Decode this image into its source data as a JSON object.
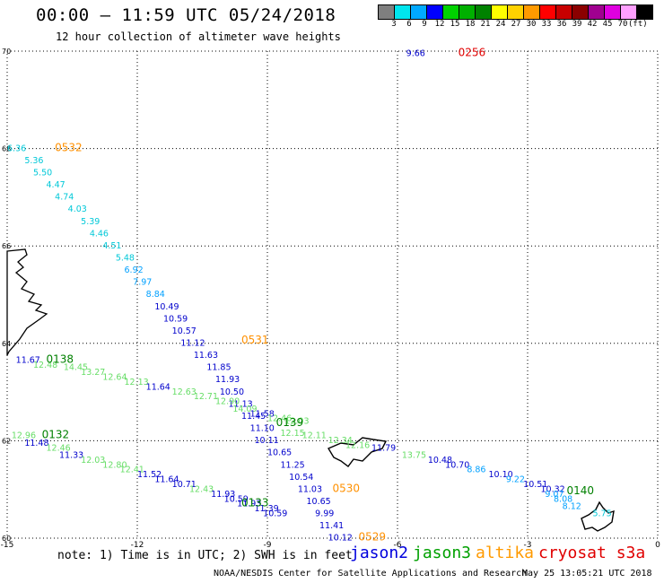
{
  "header": {
    "title": "00:00 – 11:59 UTC 05/24/2018",
    "subtitle": "12 hour collection of altimeter wave heights"
  },
  "legend": {
    "colors": [
      "#7f7f7f",
      "#00e5ee",
      "#00a9ff",
      "#0000ff",
      "#00d200",
      "#00b000",
      "#008200",
      "#ffff00",
      "#ffd200",
      "#ff9a00",
      "#ff0000",
      "#c80000",
      "#8b0000",
      "#a00090",
      "#e000e0",
      "#ffa0ff",
      "#000000"
    ],
    "labels": [
      "3",
      "6",
      "9",
      "12",
      "15",
      "18",
      "21",
      "24",
      "27",
      "30",
      "33",
      "36",
      "39",
      "42",
      "45",
      "70",
      "(ft)"
    ]
  },
  "map": {
    "lat_labels": [
      "70",
      "68",
      "66",
      "64",
      "62",
      "60"
    ],
    "lon_labels": [
      "-15",
      "-12",
      "-9",
      "-6",
      "-3",
      "0"
    ]
  },
  "passes": [
    {
      "label": "0256",
      "color": "#e00000",
      "label_pos": [
        -4.6,
        69.9
      ],
      "obs": [
        {
          "lat": 69.9,
          "lon": -5.8,
          "v": "9.66",
          "c": "#0000cc"
        }
      ]
    },
    {
      "label": "0532",
      "color": "#ff9000",
      "label_pos": [
        -13.9,
        67.95
      ],
      "obs": [
        {
          "lat": 67.95,
          "lon": -15.0,
          "v": "6.36",
          "c": "#00c8d8"
        },
        {
          "lat": 67.7,
          "lon": -14.6,
          "v": "5.36",
          "c": "#00c8d8"
        },
        {
          "lat": 67.45,
          "lon": -14.4,
          "v": "5.50",
          "c": "#00c8d8"
        },
        {
          "lat": 67.2,
          "lon": -14.1,
          "v": "4.47",
          "c": "#00c8d8"
        },
        {
          "lat": 66.95,
          "lon": -13.9,
          "v": "4.74",
          "c": "#00c8d8"
        },
        {
          "lat": 66.7,
          "lon": -13.6,
          "v": "4.03",
          "c": "#00c8d8"
        },
        {
          "lat": 66.45,
          "lon": -13.3,
          "v": "5.39",
          "c": "#00c8d8"
        },
        {
          "lat": 66.2,
          "lon": -13.1,
          "v": "4.46",
          "c": "#00c8d8"
        },
        {
          "lat": 65.95,
          "lon": -12.8,
          "v": "4.51",
          "c": "#00c8d8"
        },
        {
          "lat": 65.7,
          "lon": -12.5,
          "v": "5.48",
          "c": "#00c8d8"
        },
        {
          "lat": 65.45,
          "lon": -12.3,
          "v": "6.92",
          "c": "#00a0ff"
        },
        {
          "lat": 65.2,
          "lon": -12.1,
          "v": "7.97",
          "c": "#00a0ff"
        },
        {
          "lat": 64.95,
          "lon": -11.8,
          "v": "8.84",
          "c": "#00a0ff"
        },
        {
          "lat": 64.7,
          "lon": -11.6,
          "v": "10.49",
          "c": "#0000cc"
        },
        {
          "lat": 64.45,
          "lon": -11.4,
          "v": "10.59",
          "c": "#0000cc"
        },
        {
          "lat": 64.2,
          "lon": -11.2,
          "v": "10.57",
          "c": "#0000cc"
        }
      ]
    },
    {
      "label": "0531",
      "color": "#ff9000",
      "label_pos": [
        -9.6,
        64.0
      ],
      "obs": [
        {
          "lat": 63.95,
          "lon": -11.0,
          "v": "11.12",
          "c": "#0000cc"
        },
        {
          "lat": 63.7,
          "lon": -10.7,
          "v": "11.63",
          "c": "#0000cc"
        },
        {
          "lat": 63.45,
          "lon": -10.4,
          "v": "11.85",
          "c": "#0000cc"
        },
        {
          "lat": 63.2,
          "lon": -10.2,
          "v": "11.93",
          "c": "#0000cc"
        },
        {
          "lat": 62.95,
          "lon": -10.1,
          "v": "10.50",
          "c": "#0000cc"
        },
        {
          "lat": 62.7,
          "lon": -9.9,
          "v": "11.13",
          "c": "#0000cc"
        },
        {
          "lat": 62.45,
          "lon": -9.6,
          "v": "11.45",
          "c": "#0000cc"
        },
        {
          "lat": 62.2,
          "lon": -9.4,
          "v": "11.10",
          "c": "#0000cc"
        },
        {
          "lat": 61.95,
          "lon": -9.3,
          "v": "10.11",
          "c": "#0000cc"
        },
        {
          "lat": 61.7,
          "lon": -9.0,
          "v": "10.65",
          "c": "#0000cc"
        },
        {
          "lat": 61.45,
          "lon": -8.7,
          "v": "11.25",
          "c": "#0000cc"
        },
        {
          "lat": 61.2,
          "lon": -8.5,
          "v": "10.54",
          "c": "#0000cc"
        },
        {
          "lat": 60.95,
          "lon": -8.3,
          "v": "11.03",
          "c": "#0000cc"
        },
        {
          "lat": 60.7,
          "lon": -8.1,
          "v": "10.65",
          "c": "#0000cc"
        }
      ]
    },
    {
      "label": "0530",
      "color": "#ff9000",
      "label_pos": [
        -7.5,
        60.95
      ],
      "obs": [
        {
          "lat": 60.45,
          "lon": -7.9,
          "v": "9.99",
          "c": "#0000cc"
        },
        {
          "lat": 60.2,
          "lon": -7.8,
          "v": "11.41",
          "c": "#0000cc"
        },
        {
          "lat": 59.95,
          "lon": -7.6,
          "v": "10.12",
          "c": "#0000cc"
        }
      ]
    },
    {
      "label": "0529",
      "color": "#ff9000",
      "label_pos": [
        -6.9,
        59.95
      ],
      "obs": []
    },
    {
      "label": "0138",
      "color": "#008000",
      "label_pos": [
        -14.1,
        63.6
      ],
      "obs": [
        {
          "lat": 63.6,
          "lon": -14.8,
          "v": "11.67",
          "c": "#0000cc"
        },
        {
          "lat": 63.5,
          "lon": -14.4,
          "v": "12.48",
          "c": "#66dd66"
        },
        {
          "lat": 63.45,
          "lon": -13.7,
          "v": "14.45",
          "c": "#66dd66"
        },
        {
          "lat": 63.35,
          "lon": -13.3,
          "v": "13.27",
          "c": "#66dd66"
        },
        {
          "lat": 63.25,
          "lon": -12.8,
          "v": "12.64",
          "c": "#66dd66"
        },
        {
          "lat": 63.15,
          "lon": -12.3,
          "v": "12.13",
          "c": "#66dd66"
        },
        {
          "lat": 63.05,
          "lon": -11.8,
          "v": "11.64",
          "c": "#0000cc"
        },
        {
          "lat": 62.95,
          "lon": -11.2,
          "v": "12.63",
          "c": "#66dd66"
        },
        {
          "lat": 62.85,
          "lon": -10.7,
          "v": "12.71",
          "c": "#66dd66"
        },
        {
          "lat": 62.75,
          "lon": -10.2,
          "v": "12.90",
          "c": "#66dd66"
        },
        {
          "lat": 62.6,
          "lon": -9.8,
          "v": "14.09",
          "c": "#66dd66"
        },
        {
          "lat": 62.5,
          "lon": -9.4,
          "v": "11.58",
          "c": "#0000cc"
        },
        {
          "lat": 62.4,
          "lon": -9.0,
          "v": "12.46",
          "c": "#66dd66"
        },
        {
          "lat": 62.35,
          "lon": -8.6,
          "v": "12.03",
          "c": "#66dd66"
        }
      ]
    },
    {
      "label": "0139",
      "color": "#008000",
      "label_pos": [
        -8.8,
        62.3
      ],
      "obs": [
        {
          "lat": 62.1,
          "lon": -8.7,
          "v": "12.15",
          "c": "#66dd66"
        },
        {
          "lat": 62.05,
          "lon": -8.2,
          "v": "12.11",
          "c": "#66dd66"
        },
        {
          "lat": 61.95,
          "lon": -7.6,
          "v": "12.34",
          "c": "#66dd66"
        },
        {
          "lat": 61.85,
          "lon": -7.2,
          "v": "12.16",
          "c": "#66dd66"
        },
        {
          "lat": 61.8,
          "lon": -6.6,
          "v": "11.79",
          "c": "#0000cc"
        },
        {
          "lat": 61.65,
          "lon": -5.9,
          "v": "13.75",
          "c": "#66dd66"
        },
        {
          "lat": 61.55,
          "lon": -5.3,
          "v": "10.48",
          "c": "#0000cc"
        },
        {
          "lat": 61.45,
          "lon": -4.9,
          "v": "10.70",
          "c": "#0000cc"
        },
        {
          "lat": 61.35,
          "lon": -4.4,
          "v": "8.86",
          "c": "#00a0ff"
        },
        {
          "lat": 61.25,
          "lon": -3.9,
          "v": "10.10",
          "c": "#0000cc"
        },
        {
          "lat": 61.15,
          "lon": -3.5,
          "v": "9.22",
          "c": "#00a0ff"
        },
        {
          "lat": 61.05,
          "lon": -3.1,
          "v": "10.51",
          "c": "#0000cc"
        },
        {
          "lat": 60.95,
          "lon": -2.7,
          "v": "10.32",
          "c": "#0000cc"
        }
      ]
    },
    {
      "label": "0140",
      "color": "#008000",
      "label_pos": [
        -2.1,
        60.9
      ],
      "obs": [
        {
          "lat": 60.85,
          "lon": -2.6,
          "v": "9.07",
          "c": "#00a0ff"
        },
        {
          "lat": 60.75,
          "lon": -2.4,
          "v": "8.08",
          "c": "#00a0ff"
        },
        {
          "lat": 60.6,
          "lon": -2.2,
          "v": "8.12",
          "c": "#00a0ff"
        },
        {
          "lat": 60.45,
          "lon": -1.5,
          "v": "5.75",
          "c": "#00c8d8"
        }
      ]
    },
    {
      "label": "0132",
      "color": "#008000",
      "label_pos": [
        -14.2,
        62.05
      ],
      "obs": [
        {
          "lat": 62.05,
          "lon": -14.9,
          "v": "12.96",
          "c": "#66dd66"
        },
        {
          "lat": 61.9,
          "lon": -14.6,
          "v": "11.48",
          "c": "#0000cc"
        },
        {
          "lat": 61.8,
          "lon": -14.1,
          "v": "12.46",
          "c": "#66dd66"
        },
        {
          "lat": 61.65,
          "lon": -13.8,
          "v": "11.33",
          "c": "#0000cc"
        },
        {
          "lat": 61.55,
          "lon": -13.3,
          "v": "12.03",
          "c": "#66dd66"
        },
        {
          "lat": 61.45,
          "lon": -12.8,
          "v": "12.80",
          "c": "#66dd66"
        },
        {
          "lat": 61.35,
          "lon": -12.4,
          "v": "12.41",
          "c": "#66dd66"
        },
        {
          "lat": 61.25,
          "lon": -12.0,
          "v": "11.52",
          "c": "#0000cc"
        },
        {
          "lat": 61.15,
          "lon": -11.6,
          "v": "11.64",
          "c": "#0000cc"
        },
        {
          "lat": 61.05,
          "lon": -11.2,
          "v": "10.71",
          "c": "#0000cc"
        },
        {
          "lat": 60.95,
          "lon": -10.8,
          "v": "12.43",
          "c": "#66dd66"
        },
        {
          "lat": 60.85,
          "lon": -10.3,
          "v": "11.93",
          "c": "#0000cc"
        },
        {
          "lat": 60.75,
          "lon": -10.0,
          "v": "10.59",
          "c": "#0000cc"
        },
        {
          "lat": 60.65,
          "lon": -9.7,
          "v": "11.93",
          "c": "#0000cc"
        },
        {
          "lat": 60.55,
          "lon": -9.3,
          "v": "11.39",
          "c": "#0000cc"
        },
        {
          "lat": 60.45,
          "lon": -9.1,
          "v": "10.59",
          "c": "#0000cc"
        }
      ]
    },
    {
      "label": "0133",
      "color": "#008000",
      "label_pos": [
        -9.6,
        60.65
      ],
      "obs": []
    }
  ],
  "footer": {
    "note": "note: 1) Time is in UTC; 2) SWH is in feet",
    "satellites": [
      {
        "name": "jason2",
        "color": "#0000dd"
      },
      {
        "name": "jason3",
        "color": "#00a000"
      },
      {
        "name": "altika",
        "color": "#ff9a00"
      },
      {
        "name": "cryosat s3a",
        "color": "#e00000"
      }
    ],
    "credit": "NOAA/NESDIS Center for Satellite Applications and Research",
    "timestamp": "May 25 13:05:21 UTC 2018"
  }
}
